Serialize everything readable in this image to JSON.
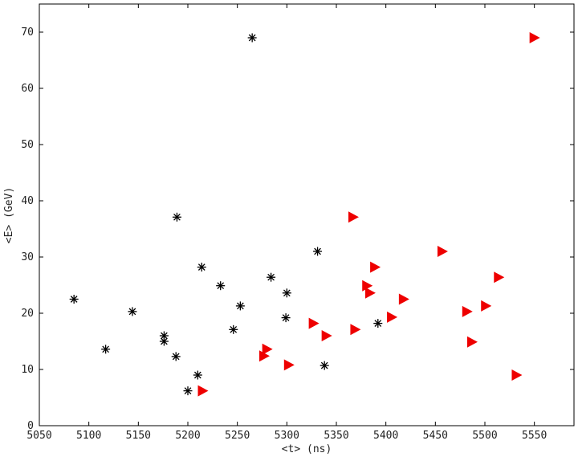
{
  "chart_data": {
    "type": "scatter",
    "xlabel": "<t> (ns)",
    "ylabel": "<E> (GeV)",
    "xlim": [
      5050,
      5590
    ],
    "ylim": [
      0,
      75
    ],
    "grid": false,
    "xticks": [
      5050,
      5100,
      5150,
      5200,
      5250,
      5300,
      5350,
      5400,
      5450,
      5500,
      5550
    ],
    "yticks": [
      0,
      10,
      20,
      30,
      40,
      50,
      60,
      70
    ],
    "colors": {
      "asterisk": "#000000",
      "triangle": "#ee0000",
      "axes": "#000000"
    },
    "series": [
      {
        "marker": "asterisk",
        "points": [
          [
            5085,
            22.5
          ],
          [
            5117,
            13.6
          ],
          [
            5144,
            20.3
          ],
          [
            5176,
            16.0
          ],
          [
            5176,
            15.0
          ],
          [
            5189,
            37.1
          ],
          [
            5188,
            12.3
          ],
          [
            5200,
            6.2
          ],
          [
            5214,
            28.2
          ],
          [
            5210,
            9.0
          ],
          [
            5233,
            24.9
          ],
          [
            5246,
            17.1
          ],
          [
            5253,
            21.3
          ],
          [
            5265,
            69.0
          ],
          [
            5284,
            26.4
          ],
          [
            5300,
            23.6
          ],
          [
            5299,
            19.2
          ],
          [
            5331,
            31.0
          ],
          [
            5338,
            10.7
          ],
          [
            5392,
            18.2
          ]
        ]
      },
      {
        "marker": "triangle",
        "points": [
          [
            5215,
            6.2
          ],
          [
            5277,
            12.4
          ],
          [
            5280,
            13.6
          ],
          [
            5302,
            10.8
          ],
          [
            5327,
            18.2
          ],
          [
            5340,
            16.0
          ],
          [
            5367,
            37.1
          ],
          [
            5369,
            17.1
          ],
          [
            5381,
            24.9
          ],
          [
            5384,
            23.6
          ],
          [
            5389,
            28.2
          ],
          [
            5406,
            19.3
          ],
          [
            5418,
            22.5
          ],
          [
            5457,
            31.0
          ],
          [
            5482,
            20.3
          ],
          [
            5487,
            14.9
          ],
          [
            5501,
            21.3
          ],
          [
            5514,
            26.4
          ],
          [
            5532,
            9.0
          ],
          [
            5550,
            69.0
          ]
        ]
      }
    ]
  }
}
